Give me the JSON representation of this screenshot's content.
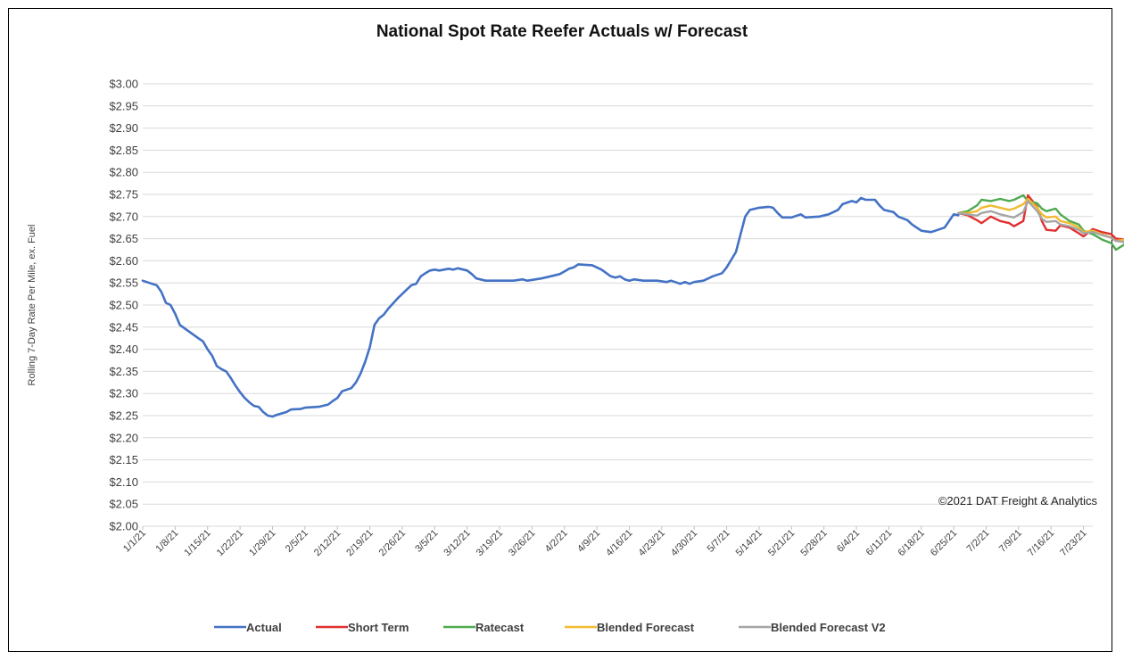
{
  "chart_data": {
    "type": "line",
    "title": "National Spot Rate Reefer Actuals w/ Forecast",
    "xlabel": "",
    "ylabel": "Rolling 7-Day Rate Per Mile, ex. Fuel",
    "ylim": [
      2.0,
      3.0
    ],
    "y_ticks": [
      "$2.00",
      "$2.05",
      "$2.10",
      "$2.15",
      "$2.20",
      "$2.25",
      "$2.30",
      "$2.35",
      "$2.40",
      "$2.45",
      "$2.50",
      "$2.55",
      "$2.60",
      "$2.65",
      "$2.70",
      "$2.75",
      "$2.80",
      "$2.85",
      "$2.90",
      "$2.95",
      "$3.00"
    ],
    "x_ticks": [
      "1/1/21",
      "1/8/21",
      "1/15/21",
      "1/22/21",
      "1/29/21",
      "2/5/21",
      "2/12/21",
      "2/19/21",
      "2/26/21",
      "3/5/21",
      "3/12/21",
      "3/19/21",
      "3/26/21",
      "4/2/21",
      "4/9/21",
      "4/16/21",
      "4/23/21",
      "4/30/21",
      "5/7/21",
      "5/14/21",
      "5/21/21",
      "5/28/21",
      "6/4/21",
      "6/11/21",
      "6/18/21",
      "6/25/21",
      "7/2/21",
      "7/9/21",
      "7/16/21",
      "7/23/21"
    ],
    "x_range": [
      "2021-01-01",
      "2021-07-25"
    ],
    "grid": true,
    "legend_position": "bottom",
    "annotation": "©2021 DAT Freight & Analytics",
    "series": [
      {
        "name": "Actual",
        "color": "#4472c4",
        "points": [
          [
            "2021-01-01",
            2.555
          ],
          [
            "2021-01-03",
            2.548
          ],
          [
            "2021-01-04",
            2.545
          ],
          [
            "2021-01-05",
            2.53
          ],
          [
            "2021-01-06",
            2.505
          ],
          [
            "2021-01-07",
            2.5
          ],
          [
            "2021-01-08",
            2.48
          ],
          [
            "2021-01-09",
            2.455
          ],
          [
            "2021-01-11",
            2.44
          ],
          [
            "2021-01-13",
            2.425
          ],
          [
            "2021-01-14",
            2.418
          ],
          [
            "2021-01-15",
            2.4
          ],
          [
            "2021-01-16",
            2.385
          ],
          [
            "2021-01-17",
            2.362
          ],
          [
            "2021-01-18",
            2.355
          ],
          [
            "2021-01-19",
            2.35
          ],
          [
            "2021-01-20",
            2.335
          ],
          [
            "2021-01-21",
            2.318
          ],
          [
            "2021-01-22",
            2.303
          ],
          [
            "2021-01-23",
            2.29
          ],
          [
            "2021-01-24",
            2.28
          ],
          [
            "2021-01-25",
            2.272
          ],
          [
            "2021-01-26",
            2.27
          ],
          [
            "2021-01-27",
            2.258
          ],
          [
            "2021-01-28",
            2.25
          ],
          [
            "2021-01-29",
            2.248
          ],
          [
            "2021-01-30",
            2.252
          ],
          [
            "2021-01-31",
            2.255
          ],
          [
            "2021-02-01",
            2.258
          ],
          [
            "2021-02-02",
            2.264
          ],
          [
            "2021-02-04",
            2.265
          ],
          [
            "2021-02-05",
            2.268
          ],
          [
            "2021-02-08",
            2.27
          ],
          [
            "2021-02-10",
            2.275
          ],
          [
            "2021-02-11",
            2.283
          ],
          [
            "2021-02-12",
            2.29
          ],
          [
            "2021-02-13",
            2.305
          ],
          [
            "2021-02-15",
            2.312
          ],
          [
            "2021-02-16",
            2.325
          ],
          [
            "2021-02-17",
            2.345
          ],
          [
            "2021-02-18",
            2.372
          ],
          [
            "2021-02-19",
            2.405
          ],
          [
            "2021-02-20",
            2.455
          ],
          [
            "2021-02-21",
            2.47
          ],
          [
            "2021-02-22",
            2.478
          ],
          [
            "2021-02-23",
            2.492
          ],
          [
            "2021-02-25",
            2.515
          ],
          [
            "2021-02-27",
            2.535
          ],
          [
            "2021-02-28",
            2.545
          ],
          [
            "2021-03-01",
            2.548
          ],
          [
            "2021-03-02",
            2.565
          ],
          [
            "2021-03-03",
            2.572
          ],
          [
            "2021-03-04",
            2.578
          ],
          [
            "2021-03-05",
            2.58
          ],
          [
            "2021-03-06",
            2.578
          ],
          [
            "2021-03-08",
            2.582
          ],
          [
            "2021-03-09",
            2.58
          ],
          [
            "2021-03-10",
            2.583
          ],
          [
            "2021-03-12",
            2.578
          ],
          [
            "2021-03-13",
            2.57
          ],
          [
            "2021-03-14",
            2.56
          ],
          [
            "2021-03-16",
            2.555
          ],
          [
            "2021-03-19",
            2.555
          ],
          [
            "2021-03-22",
            2.555
          ],
          [
            "2021-03-24",
            2.558
          ],
          [
            "2021-03-25",
            2.555
          ],
          [
            "2021-03-28",
            2.56
          ],
          [
            "2021-03-30",
            2.565
          ],
          [
            "2021-04-01",
            2.57
          ],
          [
            "2021-04-03",
            2.582
          ],
          [
            "2021-04-04",
            2.585
          ],
          [
            "2021-04-05",
            2.592
          ],
          [
            "2021-04-08",
            2.59
          ],
          [
            "2021-04-10",
            2.58
          ],
          [
            "2021-04-12",
            2.565
          ],
          [
            "2021-04-13",
            2.562
          ],
          [
            "2021-04-14",
            2.565
          ],
          [
            "2021-04-15",
            2.558
          ],
          [
            "2021-04-16",
            2.555
          ],
          [
            "2021-04-17",
            2.558
          ],
          [
            "2021-04-19",
            2.555
          ],
          [
            "2021-04-22",
            2.555
          ],
          [
            "2021-04-24",
            2.552
          ],
          [
            "2021-04-25",
            2.555
          ],
          [
            "2021-04-27",
            2.548
          ],
          [
            "2021-04-28",
            2.552
          ],
          [
            "2021-04-29",
            2.548
          ],
          [
            "2021-04-30",
            2.552
          ],
          [
            "2021-05-02",
            2.555
          ],
          [
            "2021-05-04",
            2.565
          ],
          [
            "2021-05-06",
            2.572
          ],
          [
            "2021-05-07",
            2.585
          ],
          [
            "2021-05-09",
            2.62
          ],
          [
            "2021-05-10",
            2.66
          ],
          [
            "2021-05-11",
            2.7
          ],
          [
            "2021-05-12",
            2.715
          ],
          [
            "2021-05-14",
            2.72
          ],
          [
            "2021-05-16",
            2.722
          ],
          [
            "2021-05-17",
            2.72
          ],
          [
            "2021-05-18",
            2.708
          ],
          [
            "2021-05-19",
            2.698
          ],
          [
            "2021-05-21",
            2.698
          ],
          [
            "2021-05-23",
            2.705
          ],
          [
            "2021-05-24",
            2.698
          ],
          [
            "2021-05-27",
            2.7
          ],
          [
            "2021-05-29",
            2.705
          ],
          [
            "2021-05-31",
            2.715
          ],
          [
            "2021-06-01",
            2.728
          ],
          [
            "2021-06-03",
            2.735
          ],
          [
            "2021-06-04",
            2.732
          ],
          [
            "2021-06-05",
            2.742
          ],
          [
            "2021-06-06",
            2.738
          ],
          [
            "2021-06-08",
            2.738
          ],
          [
            "2021-06-09",
            2.725
          ],
          [
            "2021-06-10",
            2.715
          ],
          [
            "2021-06-12",
            2.71
          ],
          [
            "2021-06-13",
            2.7
          ],
          [
            "2021-06-15",
            2.692
          ],
          [
            "2021-06-16",
            2.682
          ],
          [
            "2021-06-18",
            2.668
          ],
          [
            "2021-06-20",
            2.665
          ],
          [
            "2021-06-21",
            2.668
          ],
          [
            "2021-06-23",
            2.675
          ],
          [
            "2021-06-24",
            2.69
          ],
          [
            "2021-06-25",
            2.705
          ],
          [
            "2021-06-26",
            2.703
          ]
        ]
      },
      {
        "name": "Short Term",
        "color": "#e03030",
        "points": [
          [
            "2021-06-26",
            2.708
          ],
          [
            "2021-06-28",
            2.703
          ],
          [
            "2021-06-30",
            2.692
          ],
          [
            "2021-07-01",
            2.685
          ],
          [
            "2021-07-03",
            2.7
          ],
          [
            "2021-07-05",
            2.69
          ],
          [
            "2021-07-07",
            2.685
          ],
          [
            "2021-07-08",
            2.678
          ],
          [
            "2021-07-10",
            2.69
          ],
          [
            "2021-07-11",
            2.748
          ],
          [
            "2021-07-13",
            2.722
          ],
          [
            "2021-07-14",
            2.69
          ],
          [
            "2021-07-15",
            2.67
          ],
          [
            "2021-07-17",
            2.668
          ],
          [
            "2021-07-18",
            2.68
          ],
          [
            "2021-07-20",
            2.675
          ],
          [
            "2021-07-22",
            2.662
          ],
          [
            "2021-07-23",
            2.655
          ],
          [
            "2021-07-25",
            2.672
          ],
          [
            "2021-07-27",
            2.665
          ],
          [
            "2021-07-29",
            2.66
          ],
          [
            "2021-07-30",
            2.65
          ],
          [
            "2021-08-01",
            2.648
          ],
          [
            "2021-08-02",
            2.665
          ]
        ]
      },
      {
        "name": "Ratecast",
        "color": "#4faa4f",
        "points": [
          [
            "2021-06-26",
            2.708
          ],
          [
            "2021-06-28",
            2.712
          ],
          [
            "2021-06-30",
            2.725
          ],
          [
            "2021-07-01",
            2.738
          ],
          [
            "2021-07-03",
            2.735
          ],
          [
            "2021-07-05",
            2.74
          ],
          [
            "2021-07-07",
            2.735
          ],
          [
            "2021-07-08",
            2.738
          ],
          [
            "2021-07-10",
            2.748
          ],
          [
            "2021-07-11",
            2.735
          ],
          [
            "2021-07-13",
            2.73
          ],
          [
            "2021-07-14",
            2.718
          ],
          [
            "2021-07-15",
            2.712
          ],
          [
            "2021-07-17",
            2.718
          ],
          [
            "2021-07-18",
            2.705
          ],
          [
            "2021-07-20",
            2.69
          ],
          [
            "2021-07-22",
            2.682
          ],
          [
            "2021-07-23",
            2.668
          ],
          [
            "2021-07-25",
            2.66
          ],
          [
            "2021-07-27",
            2.648
          ],
          [
            "2021-07-29",
            2.64
          ],
          [
            "2021-07-30",
            2.625
          ],
          [
            "2021-08-01",
            2.638
          ],
          [
            "2021-08-02",
            2.632
          ]
        ]
      },
      {
        "name": "Blended Forecast",
        "color": "#f2bb30",
        "points": [
          [
            "2021-06-26",
            2.708
          ],
          [
            "2021-06-28",
            2.708
          ],
          [
            "2021-06-30",
            2.712
          ],
          [
            "2021-07-01",
            2.72
          ],
          [
            "2021-07-03",
            2.725
          ],
          [
            "2021-07-05",
            2.72
          ],
          [
            "2021-07-07",
            2.715
          ],
          [
            "2021-07-08",
            2.718
          ],
          [
            "2021-07-10",
            2.728
          ],
          [
            "2021-07-11",
            2.74
          ],
          [
            "2021-07-13",
            2.72
          ],
          [
            "2021-07-14",
            2.705
          ],
          [
            "2021-07-15",
            2.698
          ],
          [
            "2021-07-17",
            2.7
          ],
          [
            "2021-07-18",
            2.69
          ],
          [
            "2021-07-20",
            2.685
          ],
          [
            "2021-07-22",
            2.675
          ],
          [
            "2021-07-23",
            2.665
          ],
          [
            "2021-07-25",
            2.668
          ],
          [
            "2021-07-27",
            2.66
          ],
          [
            "2021-07-29",
            2.652
          ],
          [
            "2021-07-30",
            2.645
          ],
          [
            "2021-08-01",
            2.648
          ],
          [
            "2021-08-02",
            2.645
          ]
        ]
      },
      {
        "name": "Blended Forecast V2",
        "color": "#a5a5a5",
        "points": [
          [
            "2021-06-26",
            2.708
          ],
          [
            "2021-06-28",
            2.705
          ],
          [
            "2021-06-30",
            2.702
          ],
          [
            "2021-07-01",
            2.708
          ],
          [
            "2021-07-03",
            2.712
          ],
          [
            "2021-07-05",
            2.705
          ],
          [
            "2021-07-07",
            2.7
          ],
          [
            "2021-07-08",
            2.698
          ],
          [
            "2021-07-10",
            2.71
          ],
          [
            "2021-07-11",
            2.735
          ],
          [
            "2021-07-13",
            2.712
          ],
          [
            "2021-07-14",
            2.695
          ],
          [
            "2021-07-15",
            2.688
          ],
          [
            "2021-07-17",
            2.69
          ],
          [
            "2021-07-18",
            2.682
          ],
          [
            "2021-07-20",
            2.678
          ],
          [
            "2021-07-22",
            2.67
          ],
          [
            "2021-07-23",
            2.662
          ],
          [
            "2021-07-25",
            2.665
          ],
          [
            "2021-07-27",
            2.658
          ],
          [
            "2021-07-29",
            2.652
          ],
          [
            "2021-07-30",
            2.645
          ],
          [
            "2021-08-01",
            2.642
          ],
          [
            "2021-08-02",
            2.64
          ]
        ]
      }
    ]
  }
}
